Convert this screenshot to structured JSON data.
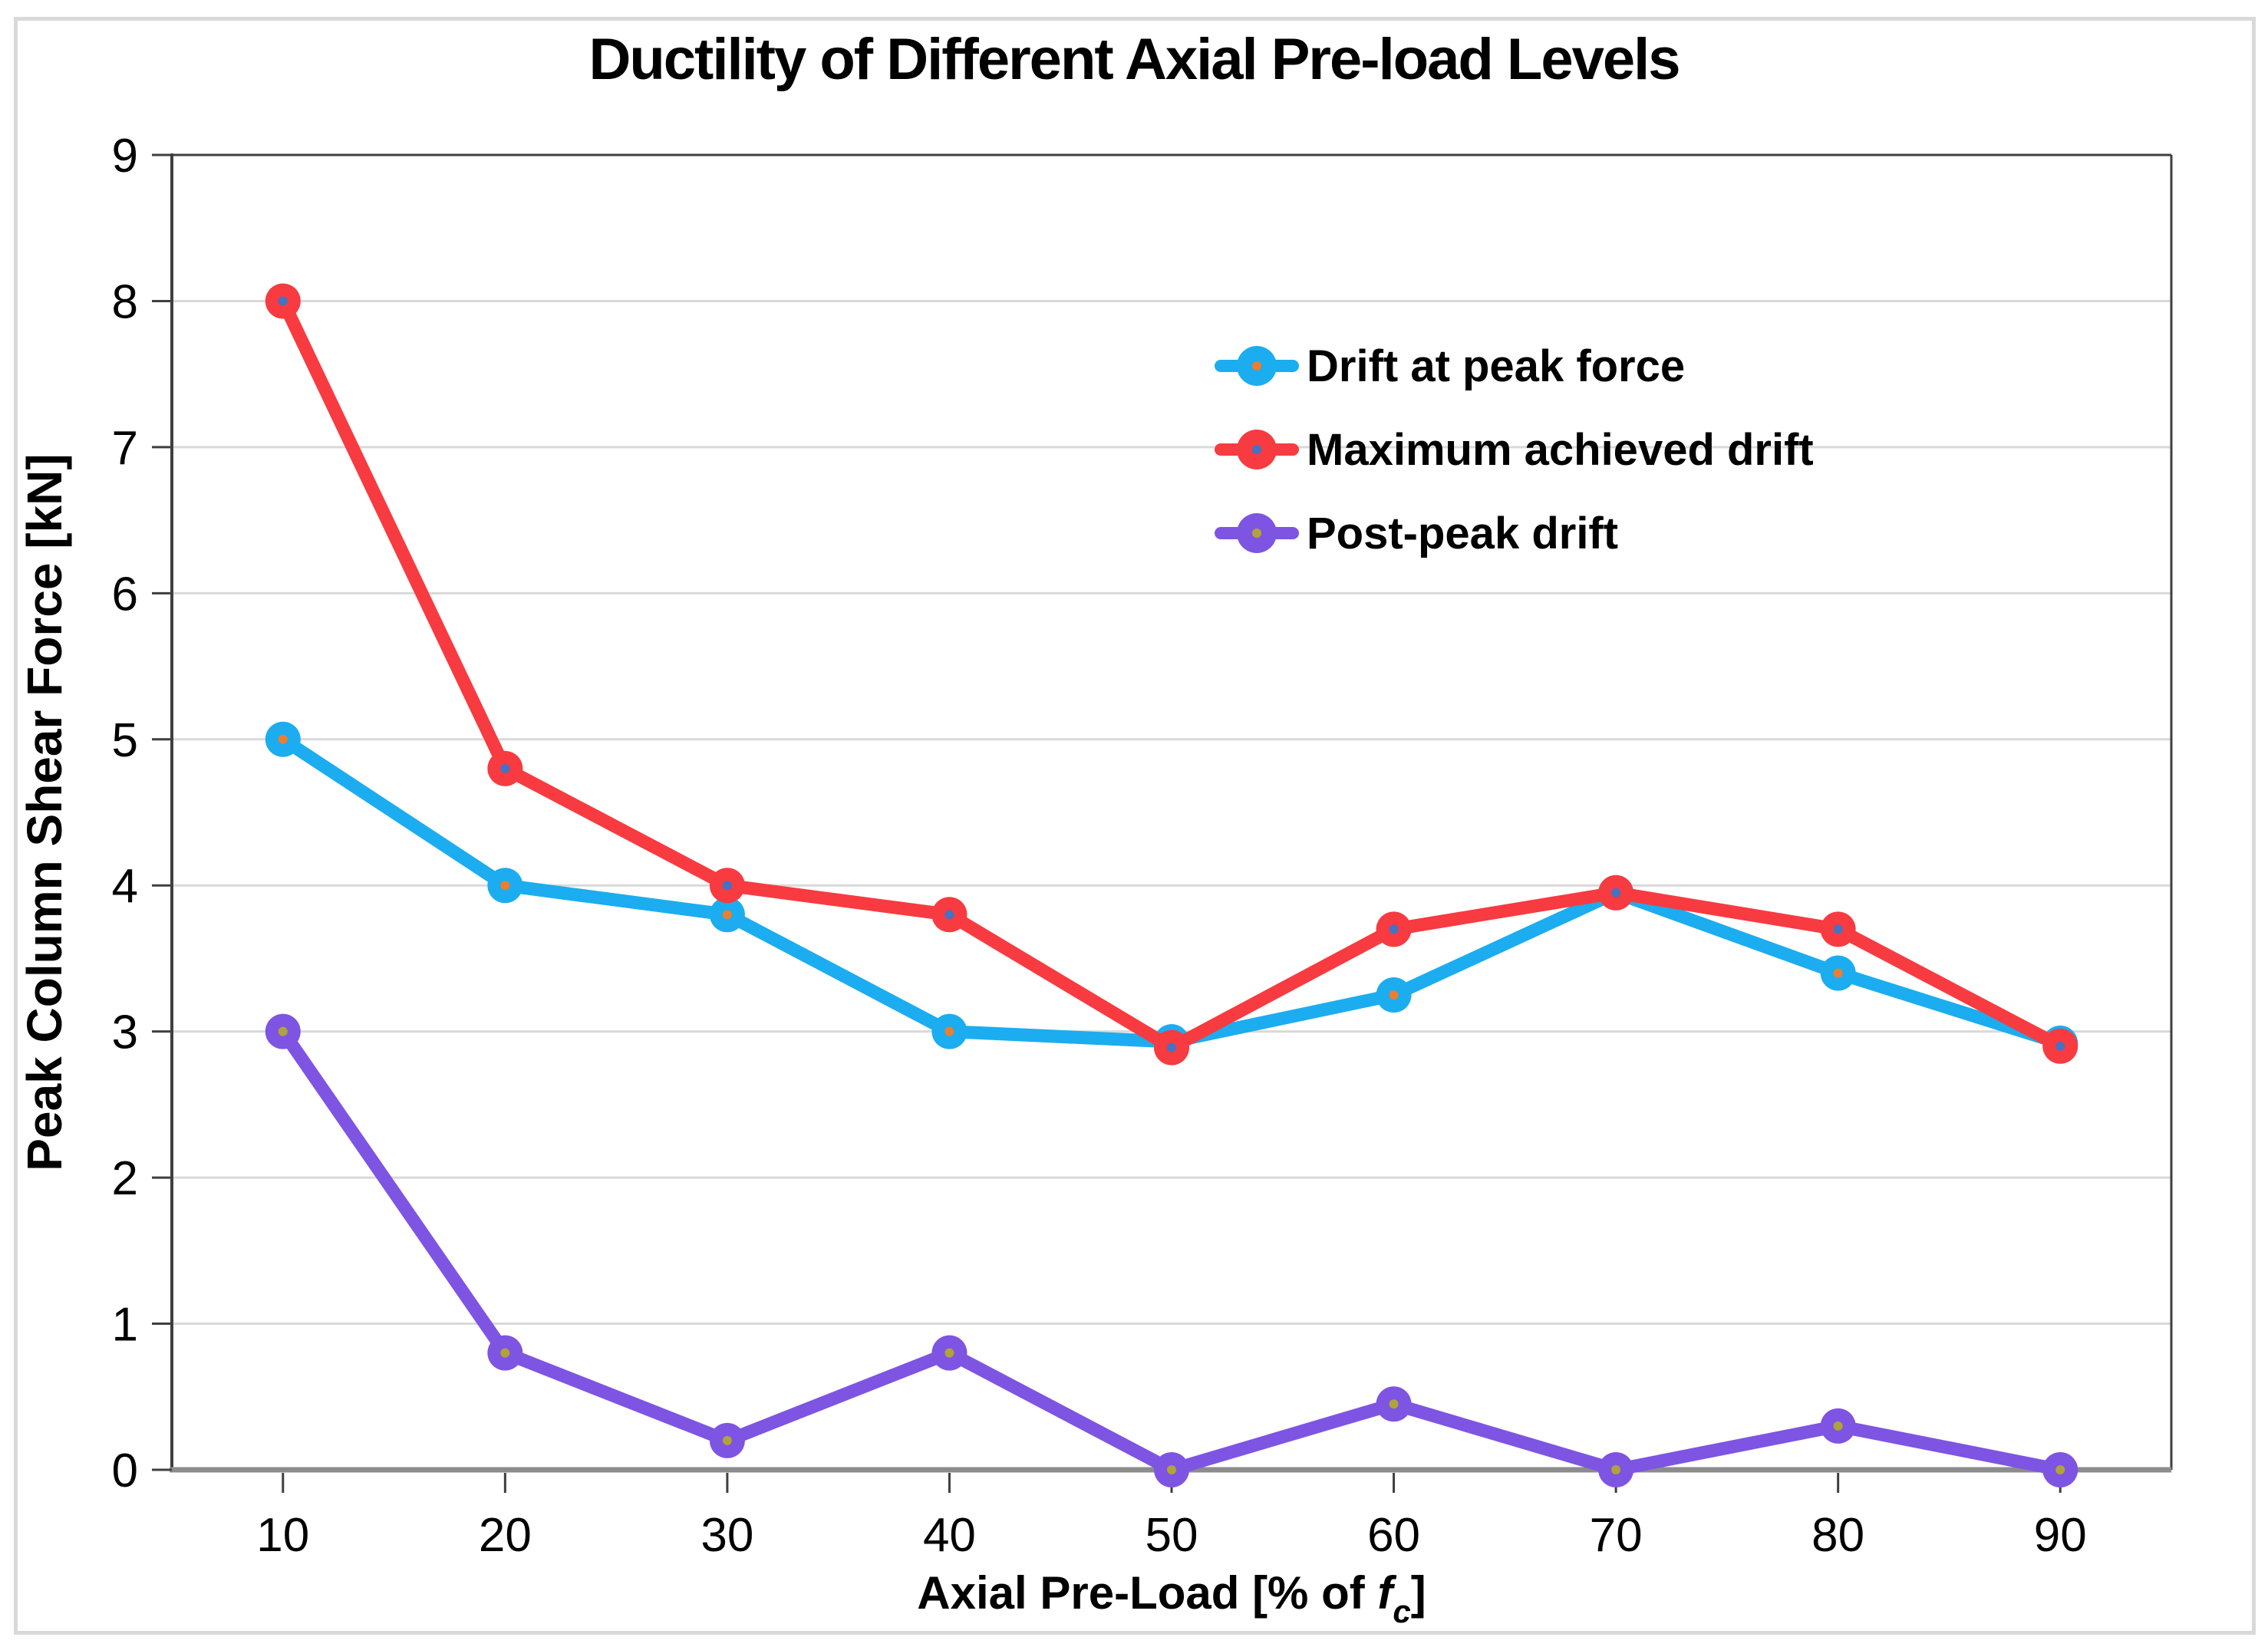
{
  "title": "Ductility of Different Axial Pre-load Levels",
  "axes": {
    "x": {
      "title_prefix": "Axial Pre-Load [% of ",
      "title_f": "f",
      "title_sub": "c",
      "title_suffix": "]",
      "ticks": [
        10,
        20,
        30,
        40,
        50,
        60,
        70,
        80,
        90
      ],
      "min": 5,
      "max": 95
    },
    "y": {
      "title": "Peak Column Shear Force [kN]",
      "ticks": [
        0,
        1,
        2,
        3,
        4,
        5,
        6,
        7,
        8,
        9
      ],
      "min": 0,
      "max": 9
    }
  },
  "colors": {
    "gridline": "#d9d9d9",
    "plot_border": "#3f3f3f",
    "bottom_axis": "#8c8c8c",
    "frame_border": "#d9d9d9",
    "text": "#000000"
  },
  "chart_data": {
    "type": "line",
    "title": "Ductility of Different Axial Pre-load Levels",
    "xlabel": "Axial Pre-Load [% of fc]",
    "ylabel": "Peak Column Shear Force [kN]",
    "x": [
      10,
      20,
      30,
      40,
      50,
      60,
      70,
      80,
      90
    ],
    "series": [
      {
        "name": "Drift at peak force",
        "color": "#1badef",
        "marker_dot_color": "#ed7d31",
        "values": [
          5.0,
          4.0,
          3.8,
          3.0,
          2.93,
          3.25,
          3.95,
          3.4,
          2.92
        ]
      },
      {
        "name": "Maximum achieved drift",
        "color": "#f73b40",
        "marker_dot_color": "#4472c4",
        "values": [
          8.0,
          4.8,
          4.0,
          3.8,
          2.89,
          3.7,
          3.95,
          3.7,
          2.9
        ]
      },
      {
        "name": "Post-peak drift",
        "color": "#7e54e2",
        "marker_dot_color": "#b1a33b",
        "values": [
          3.0,
          0.8,
          0.2,
          0.8,
          0.0,
          0.45,
          0.0,
          0.3,
          0.0
        ]
      }
    ],
    "xlim": [
      5,
      95
    ],
    "ylim": [
      0,
      9
    ],
    "grid": "horizontal-only",
    "legend_position": "inside-upper-right",
    "marker": "circle"
  }
}
